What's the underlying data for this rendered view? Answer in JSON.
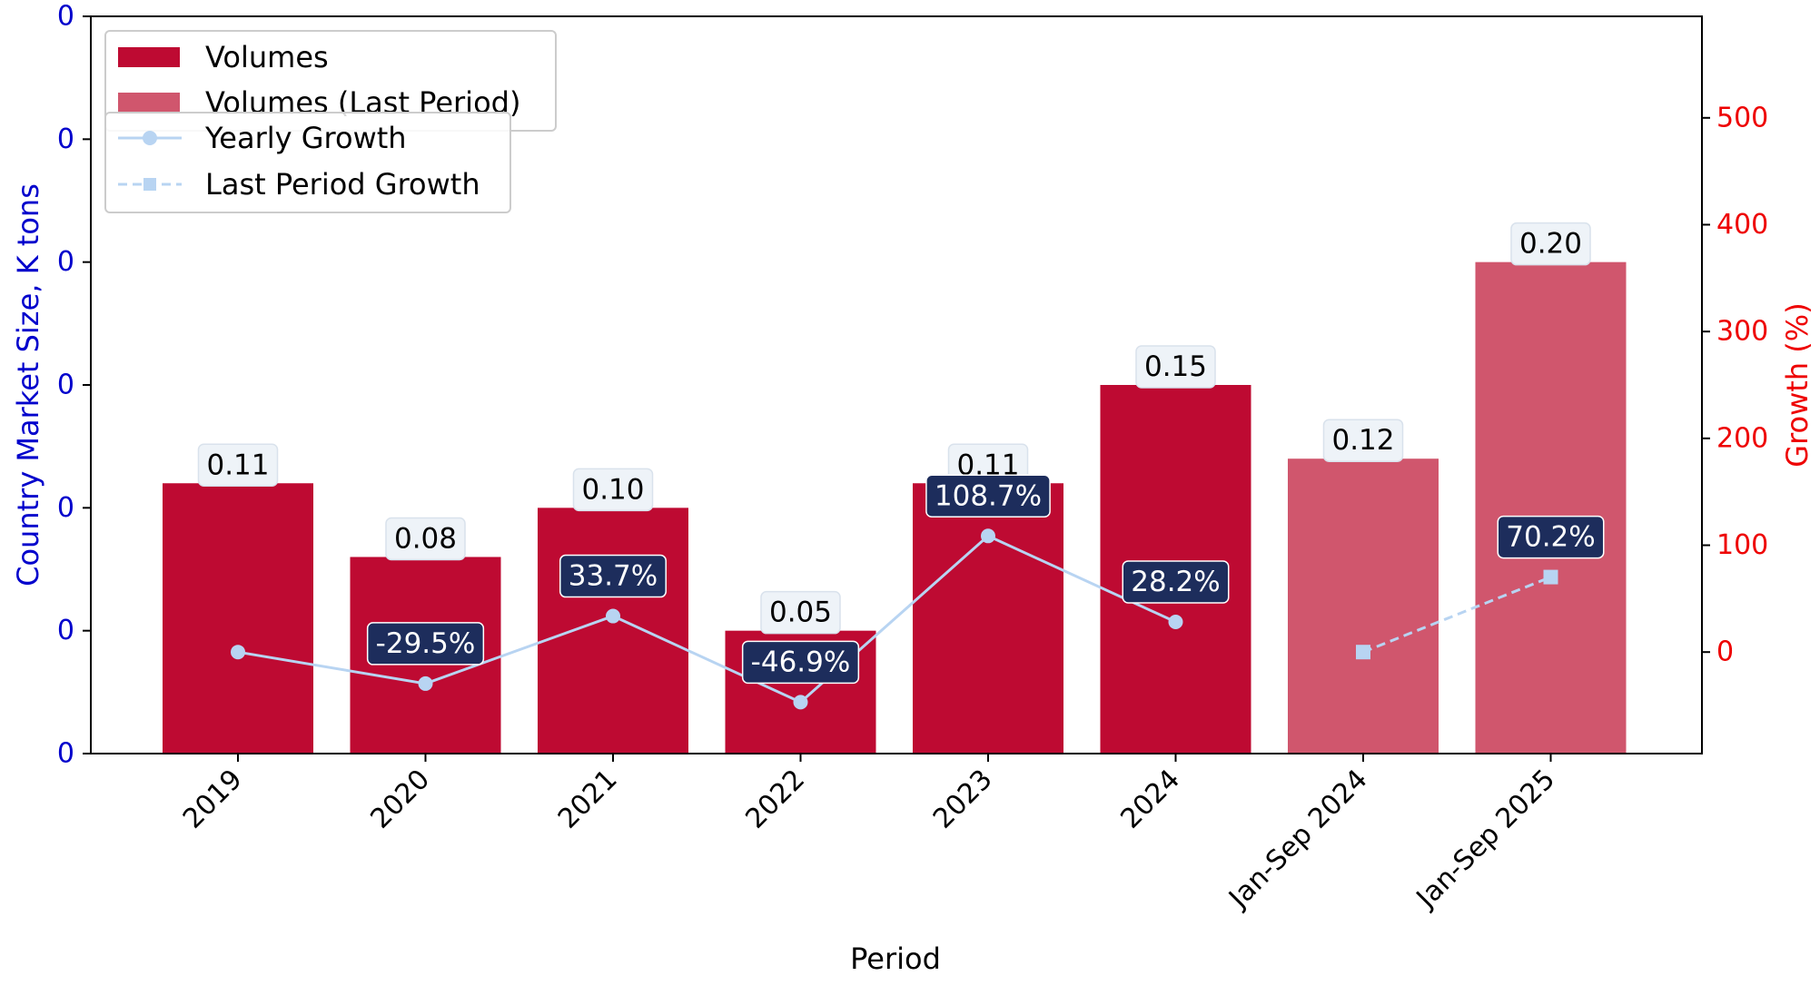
{
  "chart_data": {
    "type": "bar",
    "xlabel": "Period",
    "ylabel_left": "Country Market Size, K tons",
    "ylabel_right": "Growth (%)",
    "categories": [
      "2019",
      "2020",
      "2021",
      "2022",
      "2023",
      "2024",
      "Jan-Sep 2024",
      "Jan-Sep 2025"
    ],
    "left_axis": {
      "ylim": [
        0,
        0.3
      ],
      "ticks": [
        0,
        0.05,
        0.1,
        0.15,
        0.2,
        0.25,
        0.3
      ],
      "tick_labels": [
        "0",
        "0",
        "0",
        "0",
        "0",
        "0",
        "0"
      ]
    },
    "right_axis": {
      "ylim": [
        -95,
        595
      ],
      "ticks": [
        0,
        100,
        200,
        300,
        400,
        500
      ],
      "tick_labels": [
        "0",
        "100",
        "200",
        "300",
        "400",
        "500"
      ]
    },
    "series": [
      {
        "name": "Volumes",
        "kind": "bar",
        "axis": "left",
        "color": "#be0a32",
        "values": [
          0.11,
          0.08,
          0.1,
          0.05,
          0.11,
          0.15,
          null,
          null
        ],
        "labels": [
          "0.11",
          "0.08",
          "0.10",
          "0.05",
          "0.11",
          "0.15",
          "",
          ""
        ]
      },
      {
        "name": "Volumes (Last Period)",
        "kind": "bar",
        "axis": "left",
        "color": "#d0566d",
        "values": [
          null,
          null,
          null,
          null,
          null,
          null,
          0.12,
          0.2
        ],
        "labels": [
          "",
          "",
          "",
          "",
          "",
          "",
          "0.12",
          "0.20"
        ]
      },
      {
        "name": "Yearly Growth",
        "kind": "line",
        "axis": "right",
        "style": "solid",
        "marker": "circle",
        "color": "#b8d4f2",
        "values": [
          0,
          -29.5,
          33.7,
          -46.9,
          108.7,
          28.2,
          null,
          null
        ],
        "labels": [
          "",
          "-29.5%",
          "33.7%",
          "-46.9%",
          "108.7%",
          "28.2%",
          "",
          ""
        ]
      },
      {
        "name": "Last Period Growth",
        "kind": "line",
        "axis": "right",
        "style": "dashed",
        "marker": "square",
        "color": "#b8d4f2",
        "values": [
          null,
          null,
          null,
          null,
          null,
          null,
          0,
          70.2
        ],
        "labels": [
          "",
          "",
          "",
          "",
          "",
          "",
          "",
          "70.2%"
        ]
      }
    ],
    "legend": [
      {
        "label": "Volumes",
        "kind": "bar",
        "color": "#be0a32"
      },
      {
        "label": "Volumes (Last Period)",
        "kind": "bar",
        "color": "#d0566d"
      },
      {
        "label": "Yearly Growth",
        "kind": "line",
        "style": "solid",
        "marker": "circle",
        "color": "#b8d4f2"
      },
      {
        "label": "Last Period Growth",
        "kind": "line",
        "style": "dashed",
        "marker": "square",
        "color": "#b8d4f2"
      }
    ],
    "legend_position": "top-left",
    "grid": false,
    "colors": {
      "left_axis": "#0000cc",
      "right_axis": "#ee0000",
      "volume_label_box": "#eef3f8",
      "growth_label_box": "#1d2d5c"
    }
  }
}
